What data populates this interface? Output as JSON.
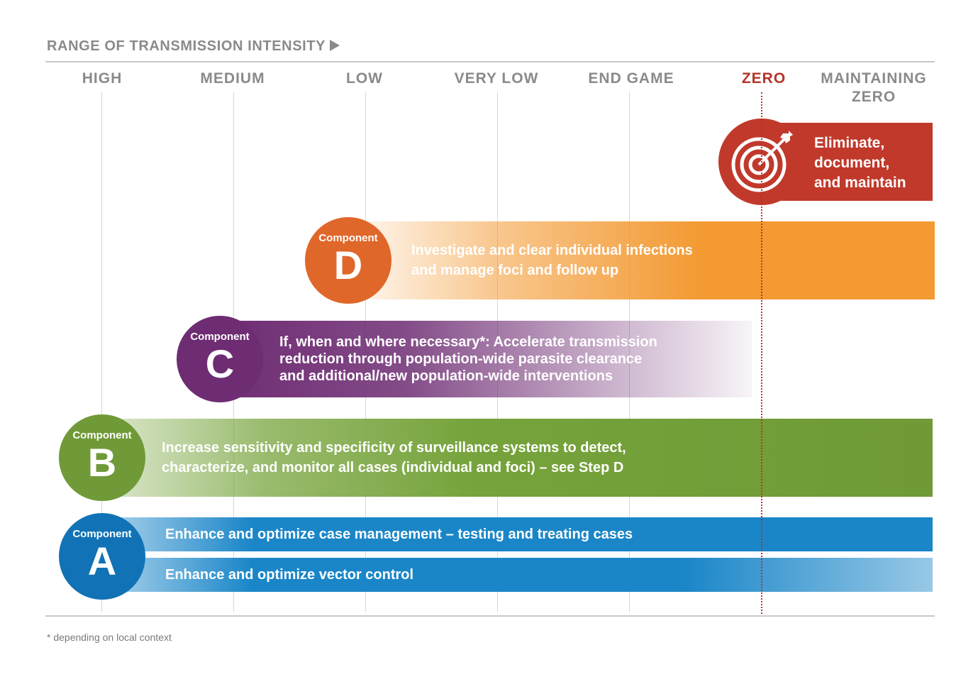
{
  "header": {
    "axis_title": "RANGE OF TRANSMISSION INTENSITY"
  },
  "columns": [
    {
      "label": "HIGH"
    },
    {
      "label": "MEDIUM"
    },
    {
      "label": "LOW"
    },
    {
      "label": "VERY LOW"
    },
    {
      "label": "END GAME"
    },
    {
      "label": "ZERO"
    },
    {
      "label": "MAINTAINING ZERO"
    }
  ],
  "goal": {
    "text_line1": "Eliminate,",
    "text_line2": "document,",
    "text_line3": "and maintain",
    "icon": "target-icon",
    "color": "#c0392b"
  },
  "components": {
    "d": {
      "word": "Component",
      "letter": "D",
      "line1": "Investigate and clear individual infections",
      "line2": "and manage foci and follow up",
      "color": "#f39a33"
    },
    "c": {
      "word": "Component",
      "letter": "C",
      "line1": "If, when and where necessary*: Accelerate transmission",
      "line2": "reduction through population-wide parasite clearance",
      "line3": "and additional/new population-wide interventions",
      "color": "#6e2c73"
    },
    "b": {
      "word": "Component",
      "letter": "B",
      "line1": "Increase sensitivity and specificity of surveillance systems to detect,",
      "line2": "characterize, and monitor all cases (individual and foci) – see Step D",
      "color": "#76a33b"
    },
    "a": {
      "word": "Component",
      "letter": "A",
      "row1": "Enhance and optimize case management – testing and treating cases",
      "row2": "Enhance and optimize vector control",
      "color": "#1a86c8"
    }
  },
  "footnote": "* depending on local context"
}
